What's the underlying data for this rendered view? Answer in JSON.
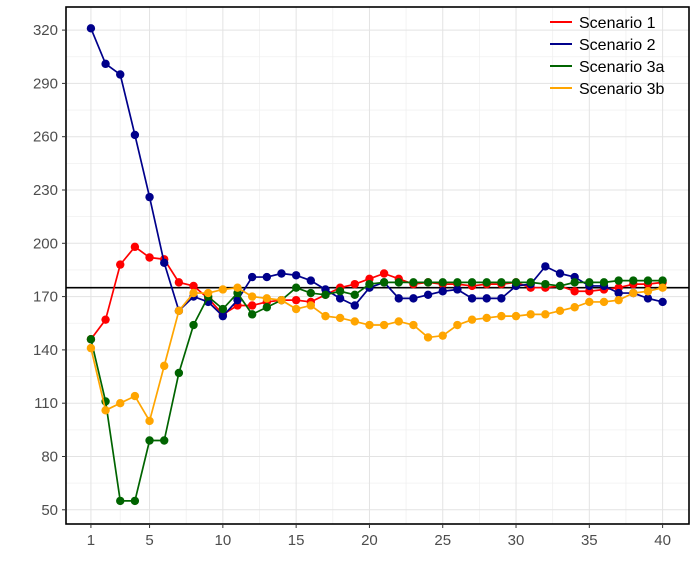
{
  "chart_data": {
    "type": "line",
    "title": "",
    "xlabel": "",
    "ylabel": "",
    "x_ticks": [
      1,
      5,
      10,
      15,
      20,
      25,
      30,
      35,
      40
    ],
    "y_ticks": [
      50,
      80,
      110,
      140,
      170,
      200,
      230,
      260,
      290,
      320
    ],
    "x_tick_labels": [
      "1",
      "5",
      "10",
      "15",
      "20",
      "25",
      "30",
      "35",
      "40"
    ],
    "y_tick_labels": [
      "50",
      "80",
      "110",
      "140",
      "170",
      "200",
      "230",
      "260",
      "290",
      "320"
    ],
    "xlim": [
      -0.7,
      41.8
    ],
    "ylim": [
      42,
      333
    ],
    "grid": true,
    "legend_position": "top-right",
    "reference_line": {
      "y": 175,
      "color": "#000000"
    },
    "x": [
      1,
      2,
      3,
      4,
      5,
      6,
      7,
      8,
      9,
      10,
      11,
      12,
      13,
      14,
      15,
      16,
      17,
      18,
      19,
      20,
      21,
      22,
      23,
      24,
      25,
      26,
      27,
      28,
      29,
      30,
      31,
      32,
      33,
      34,
      35,
      36,
      37,
      38,
      39,
      40
    ],
    "series": [
      {
        "name": "Scenario 1",
        "color": "#ff0000",
        "values": [
          146,
          157,
          188,
          198,
          192,
          191,
          178,
          176,
          169,
          160,
          165,
          165,
          167,
          168,
          168,
          167,
          171,
          175,
          177,
          180,
          183,
          180,
          177,
          178,
          177,
          177,
          176,
          177,
          177,
          178,
          175,
          175,
          176,
          173,
          173,
          174,
          175,
          177,
          177,
          178
        ]
      },
      {
        "name": "Scenario 2",
        "color": "#00008b",
        "values": [
          321,
          301,
          295,
          261,
          226,
          189,
          162,
          170,
          167,
          159,
          168,
          181,
          181,
          183,
          182,
          179,
          174,
          169,
          165,
          175,
          178,
          169,
          169,
          171,
          173,
          174,
          169,
          169,
          169,
          176,
          177,
          187,
          183,
          181,
          176,
          176,
          172,
          172,
          169,
          167
        ]
      },
      {
        "name": "Scenario 3a",
        "color": "#006400",
        "values": [
          146,
          111,
          55,
          55,
          89,
          89,
          127,
          154,
          170,
          163,
          172,
          160,
          164,
          168,
          175,
          172,
          171,
          173,
          171,
          177,
          178,
          178,
          178,
          178,
          178,
          178,
          178,
          178,
          178,
          178,
          178,
          177,
          176,
          178,
          178,
          178,
          179,
          179,
          179,
          179
        ]
      },
      {
        "name": "Scenario 3b",
        "color": "#ffa500",
        "values": [
          141,
          106,
          110,
          114,
          100,
          131,
          162,
          172,
          172,
          174,
          175,
          170,
          169,
          168,
          163,
          165,
          159,
          158,
          156,
          154,
          154,
          156,
          154,
          147,
          148,
          154,
          157,
          158,
          159,
          159,
          160,
          160,
          162,
          164,
          167,
          167,
          168,
          172,
          173,
          175
        ]
      }
    ]
  }
}
